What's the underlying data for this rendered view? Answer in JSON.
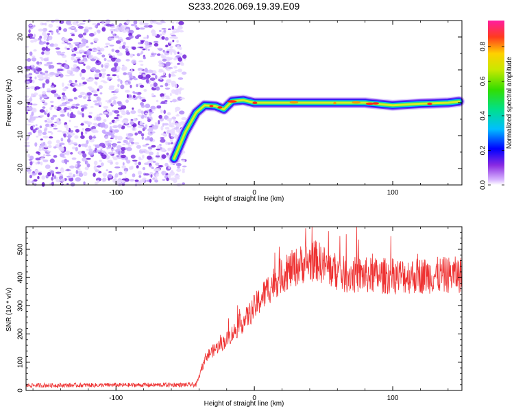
{
  "title": "S233.2026.069.19.39.E09",
  "chart_data": [
    {
      "type": "heatmap",
      "title": "S233.2026.069.19.39.E09",
      "xlabel": "Height of straight line (km)",
      "ylabel": "Frequency (Hz)",
      "xlim": [
        -165,
        150
      ],
      "ylim": [
        -25,
        25
      ],
      "xticks": [
        -100,
        0,
        100
      ],
      "yticks": [
        -20,
        -10,
        0,
        10,
        20
      ],
      "colorbar": {
        "label": "Normalized spectral amplitude",
        "range": [
          0.0,
          0.95
        ],
        "ticks": [
          0.0,
          0.2,
          0.4,
          0.6,
          0.8
        ]
      },
      "noise_region": {
        "x_from": -165,
        "x_to": -50
      },
      "signal_track": [
        {
          "x": -58,
          "y": -17.0
        },
        {
          "x": -50,
          "y": -9.0
        },
        {
          "x": -42,
          "y": -3.0
        },
        {
          "x": -36,
          "y": -0.8
        },
        {
          "x": -28,
          "y": -1.0
        },
        {
          "x": -22,
          "y": -2.0
        },
        {
          "x": -16,
          "y": 0.5
        },
        {
          "x": -8,
          "y": 0.8
        },
        {
          "x": 0,
          "y": 0.0
        },
        {
          "x": 20,
          "y": 0.0
        },
        {
          "x": 40,
          "y": 0.0
        },
        {
          "x": 60,
          "y": 0.0
        },
        {
          "x": 80,
          "y": 0.0
        },
        {
          "x": 100,
          "y": -0.8
        },
        {
          "x": 120,
          "y": -0.3
        },
        {
          "x": 140,
          "y": 0.0
        },
        {
          "x": 148,
          "y": 0.4
        }
      ]
    },
    {
      "type": "line",
      "xlabel": "Height of straight line (km)",
      "ylabel": "SNR (10 * v/v)",
      "xlim": [
        -165,
        150
      ],
      "ylim": [
        0,
        580
      ],
      "xticks": [
        -100,
        0,
        100
      ],
      "yticks": [
        0,
        100,
        200,
        300,
        400,
        500
      ],
      "color": "#ee3333",
      "envelope": [
        {
          "x": -165,
          "y": 18
        },
        {
          "x": -42,
          "y": 20
        },
        {
          "x": -35,
          "y": 120
        },
        {
          "x": -20,
          "y": 180
        },
        {
          "x": -5,
          "y": 260
        },
        {
          "x": 10,
          "y": 360
        },
        {
          "x": 20,
          "y": 410
        },
        {
          "x": 35,
          "y": 450
        },
        {
          "x": 45,
          "y": 460
        },
        {
          "x": 55,
          "y": 430
        },
        {
          "x": 65,
          "y": 410
        },
        {
          "x": 100,
          "y": 405
        },
        {
          "x": 150,
          "y": 410
        }
      ]
    }
  ]
}
